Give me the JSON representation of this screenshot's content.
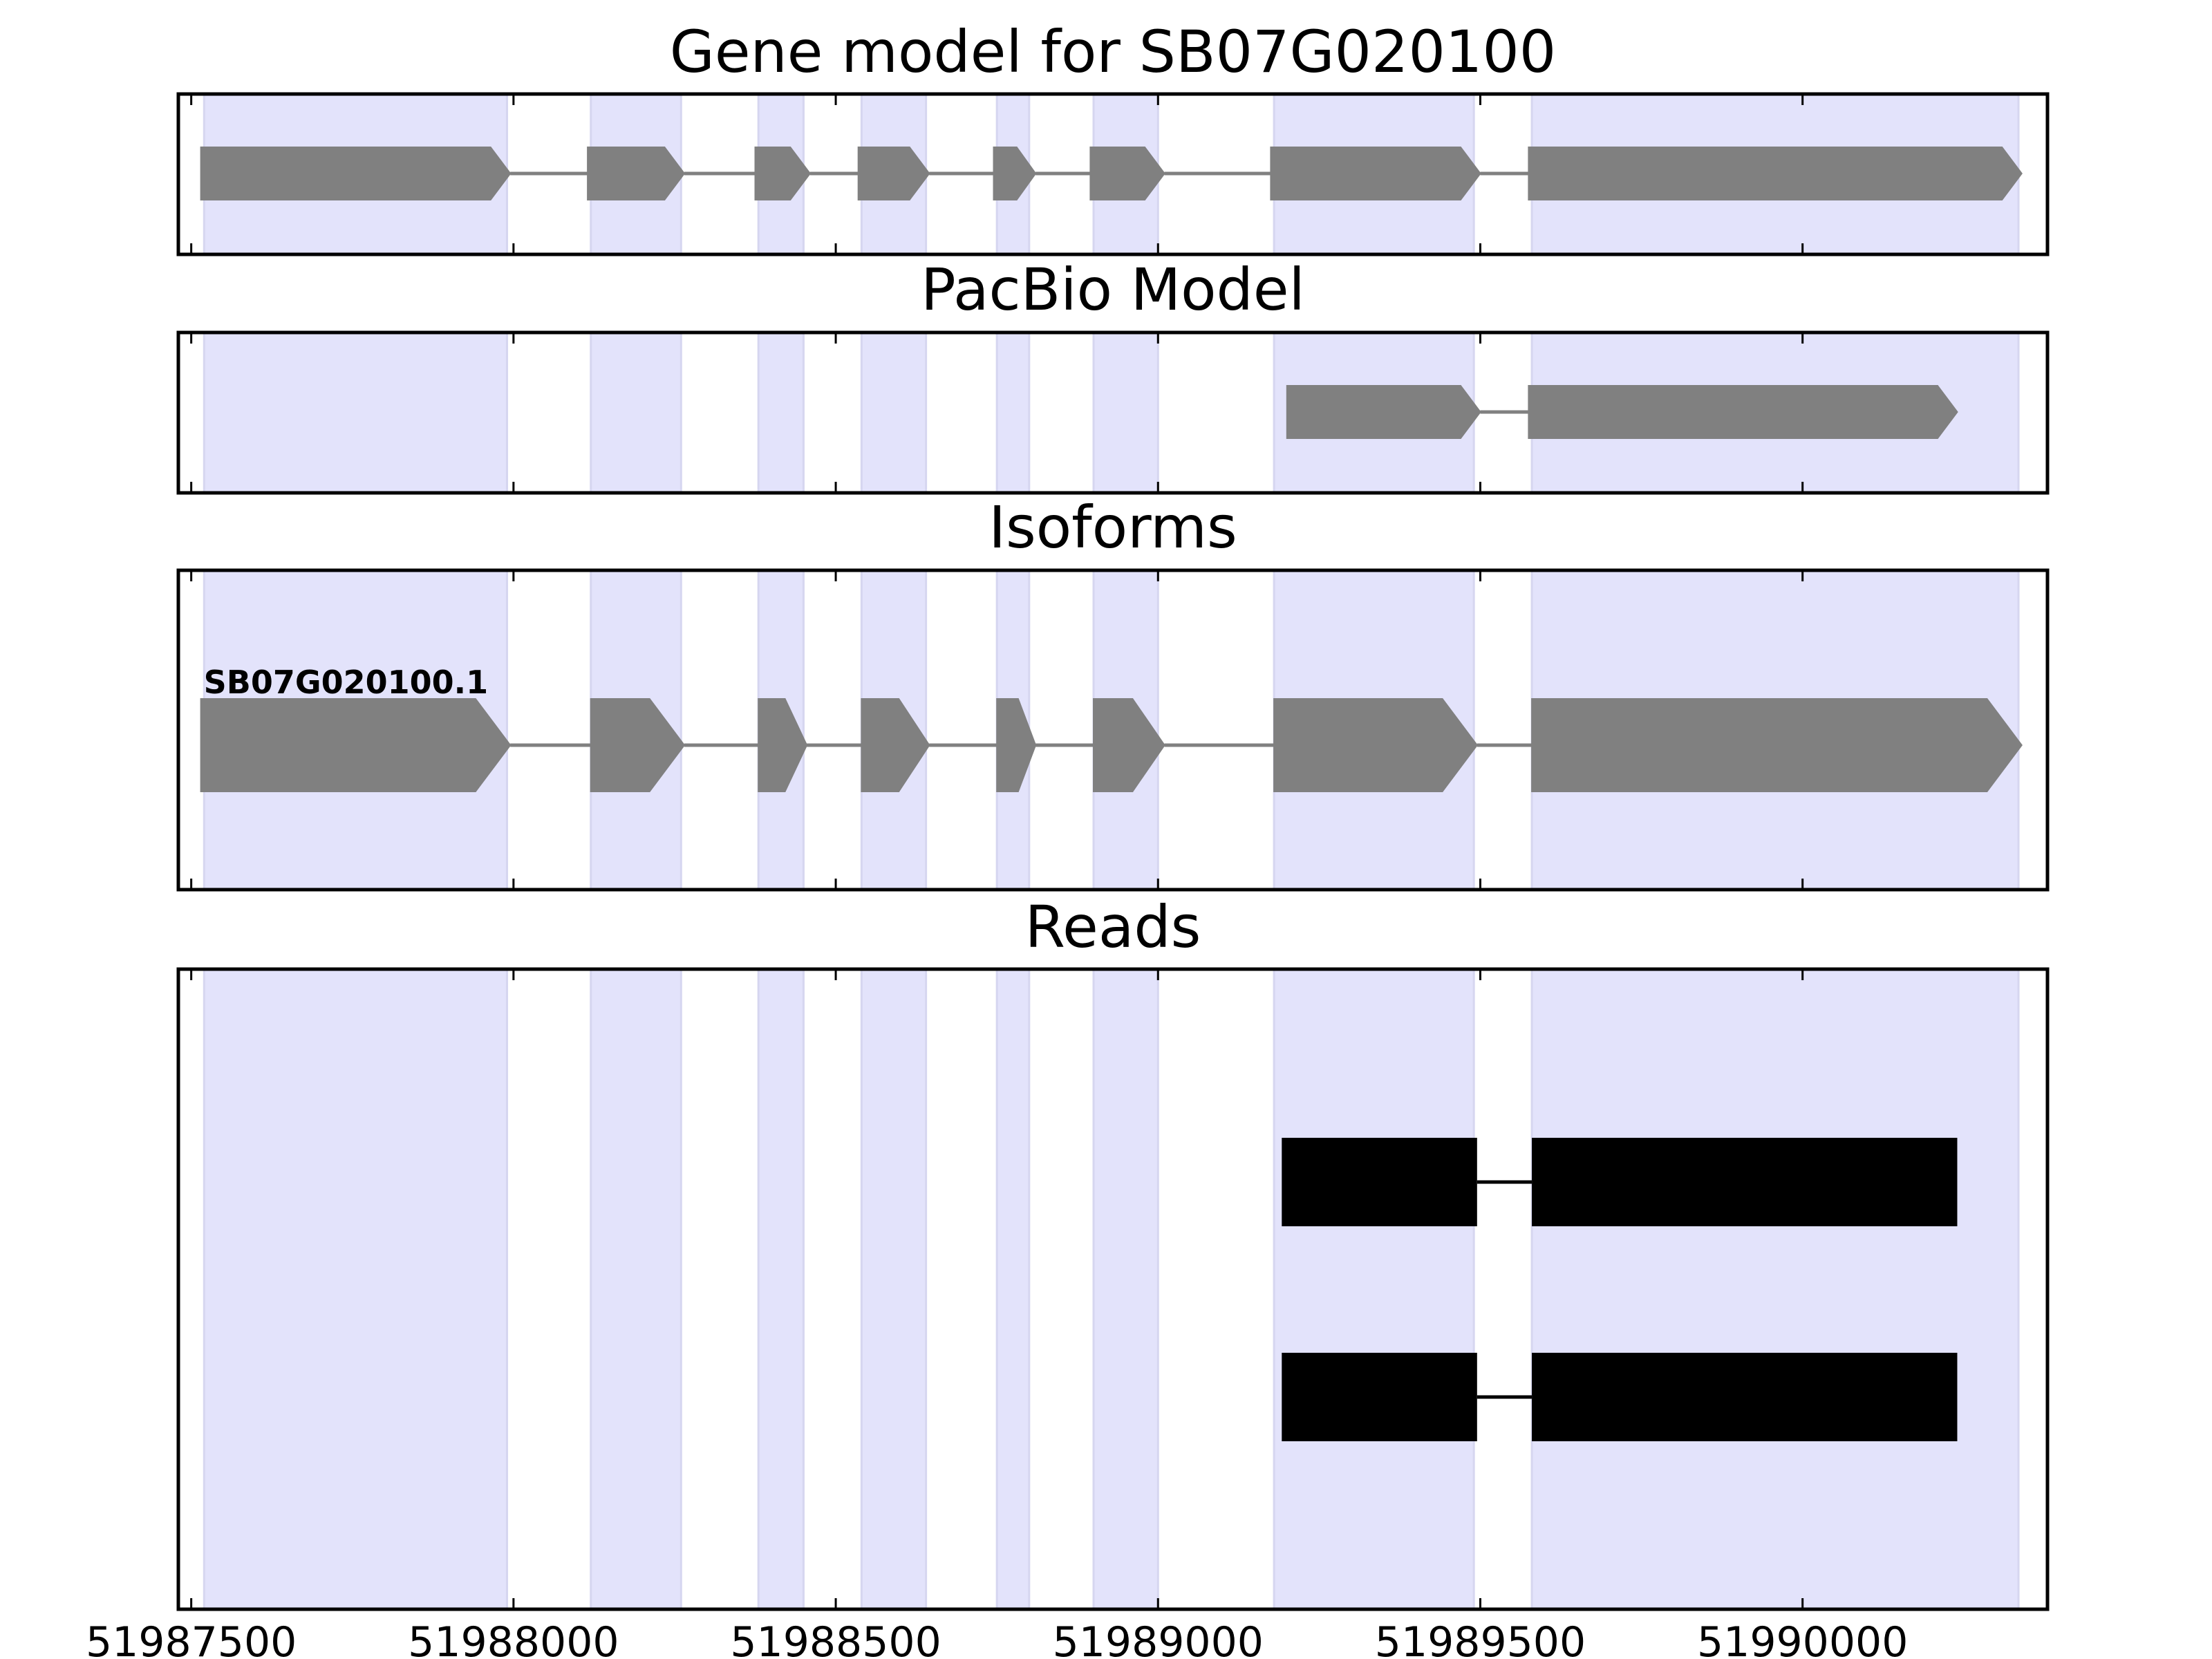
{
  "chart_data": {
    "type": "gene-track",
    "x_ticks": [
      51987500,
      51988000,
      51988500,
      51989000,
      51989500,
      51990000
    ],
    "x_tick_labels": [
      "51987500",
      "51988000",
      "51988500",
      "51989000",
      "51989500",
      "51990000"
    ],
    "xlim": [
      51987480,
      51990380
    ],
    "exon_regions": [
      [
        51987520,
        51987990
      ],
      [
        51988120,
        51988260
      ],
      [
        51988380,
        51988450
      ],
      [
        51988540,
        51988640
      ],
      [
        51988750,
        51988800
      ],
      [
        51988900,
        51989000
      ],
      [
        51989180,
        51989490
      ],
      [
        51989580,
        51990335
      ]
    ],
    "colors": {
      "exon_shade": "#e3e3fb",
      "model_feature": "#808080",
      "read_feature": "#000000",
      "frame": "#000000"
    },
    "panels": [
      {
        "title": "Gene model for SB07G020100",
        "features": [
          {
            "blocks": [
              [
                51987515,
                51987995
              ],
              [
                51988115,
                51988265
              ],
              [
                51988375,
                51988460
              ],
              [
                51988535,
                51988645
              ],
              [
                51988745,
                51988810
              ],
              [
                51988895,
                51989010
              ],
              [
                51989175,
                51989500
              ],
              [
                51989575,
                51990340
              ]
            ],
            "style": "arrow"
          }
        ]
      },
      {
        "title": "PacBio Model",
        "features": [
          {
            "blocks": [
              [
                51989200,
                51989500
              ],
              [
                51989575,
                51990240
              ]
            ],
            "style": "arrow"
          }
        ]
      },
      {
        "title": "Isoforms",
        "features": [
          {
            "label": "SB07G020100.1",
            "blocks": [
              [
                51987515,
                51987995
              ],
              [
                51988120,
                51988265
              ],
              [
                51988380,
                51988455
              ],
              [
                51988540,
                51988645
              ],
              [
                51988750,
                51988810
              ],
              [
                51988900,
                51989010
              ],
              [
                51989180,
                51989495
              ],
              [
                51989580,
                51990340
              ]
            ],
            "style": "arrow"
          }
        ]
      },
      {
        "title": "Reads",
        "features": [
          {
            "blocks": [
              [
                51989192,
                51989495
              ],
              [
                51989580,
                51990240
              ]
            ],
            "style": "box"
          },
          {
            "blocks": [
              [
                51989192,
                51989495
              ],
              [
                51989580,
                51990240
              ]
            ],
            "style": "box"
          }
        ]
      }
    ]
  }
}
